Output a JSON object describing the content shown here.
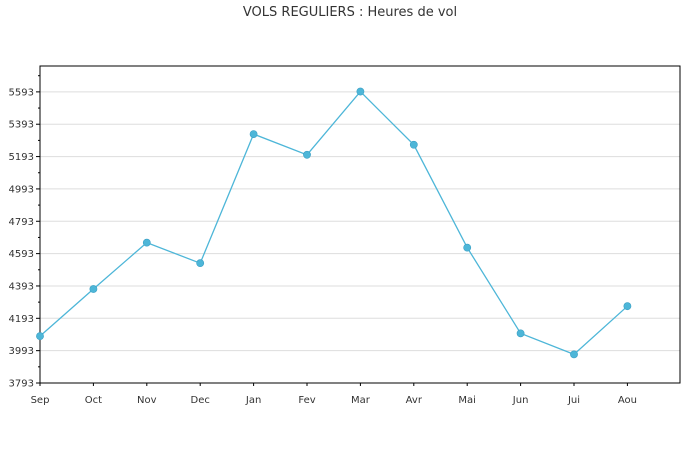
{
  "chart_data": {
    "type": "line",
    "title": "VOLS REGULIERS : Heures de vol",
    "xlabel": "",
    "ylabel": "",
    "categories": [
      "Sep",
      "Oct",
      "Nov",
      "Dec",
      "Jan",
      "Fev",
      "Mar",
      "Avr",
      "Mai",
      "Jun",
      "Jui",
      "Aou"
    ],
    "series": [
      {
        "values": [
          4083,
          4374,
          4661,
          4534,
          5332,
          5204,
          5595,
          5266,
          4630,
          4100,
          3970,
          4268
        ]
      }
    ],
    "yticks": [
      "3793",
      "3993",
      "4193",
      "4393",
      "4593",
      "4793",
      "4993",
      "5193",
      "5393",
      "5593"
    ],
    "ylim": [
      3793,
      5753
    ],
    "grid": true,
    "legend": "none",
    "colors": {
      "line": "#4db6d8",
      "grid": "#dddddd",
      "axis": "#000000"
    }
  }
}
